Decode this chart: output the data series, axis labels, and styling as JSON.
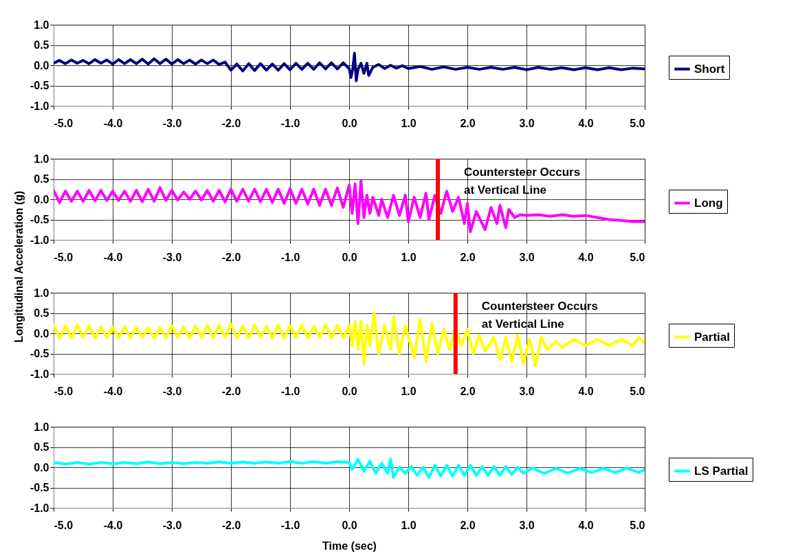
{
  "chart_data": [
    {
      "type": "line",
      "x": [
        -5.0,
        -4.9,
        -4.8,
        -4.7,
        -4.6,
        -4.5,
        -4.4,
        -4.3,
        -4.2,
        -4.1,
        -4.0,
        -3.9,
        -3.8,
        -3.7,
        -3.6,
        -3.5,
        -3.4,
        -3.3,
        -3.2,
        -3.1,
        -3.0,
        -2.9,
        -2.8,
        -2.7,
        -2.6,
        -2.5,
        -2.4,
        -2.3,
        -2.2,
        -2.1,
        -2.0,
        -1.9,
        -1.8,
        -1.7,
        -1.6,
        -1.5,
        -1.4,
        -1.3,
        -1.2,
        -1.1,
        -1.0,
        -0.9,
        -0.8,
        -0.7,
        -0.6,
        -0.5,
        -0.4,
        -0.3,
        -0.2,
        -0.1,
        0.0,
        0.03,
        0.06,
        0.09,
        0.12,
        0.15,
        0.2,
        0.25,
        0.3,
        0.33,
        0.4,
        0.5,
        0.6,
        0.7,
        0.8,
        0.9,
        1.0,
        1.2,
        1.4,
        1.6,
        1.8,
        2.0,
        2.2,
        2.4,
        2.6,
        2.8,
        3.0,
        3.2,
        3.4,
        3.6,
        3.8,
        4.0,
        4.2,
        4.4,
        4.6,
        4.8,
        5.0
      ],
      "series": [
        {
          "name": "Short",
          "color": "#000080",
          "values": [
            0.05,
            0.12,
            0.04,
            0.13,
            0.05,
            0.12,
            0.04,
            0.14,
            0.05,
            0.13,
            0.03,
            0.14,
            0.04,
            0.14,
            0.04,
            0.15,
            0.03,
            0.16,
            0.04,
            0.15,
            0.03,
            0.14,
            0.04,
            0.13,
            0.03,
            0.13,
            0.04,
            0.13,
            0.02,
            0.08,
            -0.12,
            0.03,
            -0.14,
            0.04,
            -0.13,
            0.04,
            -0.12,
            0.03,
            -0.12,
            0.04,
            -0.11,
            0.05,
            -0.1,
            0.05,
            -0.1,
            0.06,
            -0.09,
            0.06,
            -0.09,
            0.06,
            -0.08,
            -0.3,
            -0.1,
            0.3,
            -0.38,
            -0.1,
            0.05,
            -0.2,
            0.05,
            -0.25,
            -0.05,
            0.02,
            -0.08,
            0.0,
            -0.07,
            -0.01,
            -0.08,
            -0.03,
            -0.1,
            -0.04,
            -0.1,
            -0.05,
            -0.1,
            -0.05,
            -0.1,
            -0.05,
            -0.11,
            -0.05,
            -0.1,
            -0.06,
            -0.11,
            -0.06,
            -0.11,
            -0.06,
            -0.11,
            -0.07,
            -0.09
          ]
        }
      ],
      "xlim": [
        -5,
        5
      ],
      "xticks": [
        {
          "value": -5,
          "label": "-5.0"
        },
        {
          "value": -4,
          "label": "-4.0"
        },
        {
          "value": -3,
          "label": "-3.0"
        },
        {
          "value": -2,
          "label": "-2.0"
        },
        {
          "value": -1,
          "label": "-1.0"
        },
        {
          "value": 0,
          "label": "0.0"
        },
        {
          "value": 1,
          "label": "1.0"
        },
        {
          "value": 2,
          "label": "2.0"
        },
        {
          "value": 3,
          "label": "3.0"
        },
        {
          "value": 4,
          "label": "4.0"
        },
        {
          "value": 5,
          "label": "5.0"
        }
      ],
      "ylim": [
        -1,
        1
      ],
      "yticks": [
        {
          "value": -1,
          "label": "-1.0"
        },
        {
          "value": -0.5,
          "label": "-0.5"
        },
        {
          "value": 0,
          "label": "0.0"
        },
        {
          "value": 0.5,
          "label": "0.5"
        },
        {
          "value": 1,
          "label": "1.0"
        }
      ],
      "grid": true,
      "legend": "right"
    },
    {
      "type": "line",
      "ylabel": "Longitudinal Acceleration (g)",
      "x": [
        -5.0,
        -4.9,
        -4.8,
        -4.7,
        -4.6,
        -4.5,
        -4.4,
        -4.3,
        -4.2,
        -4.1,
        -4.0,
        -3.9,
        -3.8,
        -3.7,
        -3.6,
        -3.5,
        -3.4,
        -3.3,
        -3.2,
        -3.1,
        -3.0,
        -2.9,
        -2.8,
        -2.7,
        -2.6,
        -2.5,
        -2.4,
        -2.3,
        -2.2,
        -2.1,
        -2.0,
        -1.9,
        -1.8,
        -1.7,
        -1.6,
        -1.5,
        -1.4,
        -1.3,
        -1.2,
        -1.1,
        -1.0,
        -0.9,
        -0.8,
        -0.7,
        -0.6,
        -0.5,
        -0.4,
        -0.3,
        -0.2,
        -0.1,
        0.0,
        0.05,
        0.1,
        0.15,
        0.2,
        0.25,
        0.3,
        0.35,
        0.4,
        0.5,
        0.55,
        0.65,
        0.75,
        0.85,
        0.95,
        1.0,
        1.1,
        1.2,
        1.3,
        1.35,
        1.45,
        1.55,
        1.65,
        1.75,
        1.85,
        1.95,
        2.0,
        2.05,
        2.15,
        2.25,
        2.3,
        2.4,
        2.5,
        2.55,
        2.65,
        2.7,
        2.8,
        2.9,
        3.0,
        3.2,
        3.4,
        3.6,
        3.8,
        4.0,
        4.2,
        4.4,
        4.6,
        4.8,
        5.0
      ],
      "series": [
        {
          "name": "Long",
          "color": "#ff00ff",
          "values": [
            0.22,
            -0.08,
            0.2,
            -0.05,
            0.2,
            -0.05,
            0.22,
            -0.04,
            0.22,
            -0.03,
            0.2,
            -0.03,
            0.2,
            -0.05,
            0.22,
            -0.06,
            0.25,
            -0.05,
            0.29,
            -0.03,
            0.22,
            -0.02,
            0.18,
            0.0,
            0.2,
            -0.02,
            0.22,
            -0.05,
            0.22,
            -0.06,
            0.25,
            -0.05,
            0.25,
            -0.05,
            0.25,
            -0.06,
            0.25,
            -0.08,
            0.25,
            -0.1,
            0.26,
            -0.1,
            0.25,
            -0.12,
            0.25,
            -0.15,
            0.25,
            -0.15,
            0.28,
            -0.2,
            0.35,
            -0.35,
            0.38,
            -0.6,
            0.45,
            -0.45,
            0.1,
            -0.35,
            0.05,
            -0.4,
            0.0,
            -0.45,
            0.1,
            -0.4,
            0.1,
            -0.55,
            0.05,
            -0.45,
            0.15,
            -0.5,
            0.1,
            -0.35,
            0.2,
            -0.3,
            0.05,
            -0.6,
            -0.1,
            -0.8,
            -0.3,
            -0.6,
            -0.75,
            -0.2,
            -0.6,
            -0.15,
            -0.7,
            -0.25,
            -0.45,
            -0.38,
            -0.4,
            -0.38,
            -0.42,
            -0.38,
            -0.42,
            -0.4,
            -0.45,
            -0.5,
            -0.52,
            -0.55,
            -0.55
          ]
        }
      ],
      "xlim": [
        -5,
        5
      ],
      "xticks": [
        {
          "value": -5,
          "label": "-5.0"
        },
        {
          "value": -4,
          "label": "-4.0"
        },
        {
          "value": -3,
          "label": "-3.0"
        },
        {
          "value": -2,
          "label": "-2.0"
        },
        {
          "value": -1,
          "label": "-1.0"
        },
        {
          "value": 0,
          "label": "0.0"
        },
        {
          "value": 1,
          "label": "1.0"
        },
        {
          "value": 2,
          "label": "2.0"
        },
        {
          "value": 3,
          "label": "3.0"
        },
        {
          "value": 4,
          "label": "4.0"
        },
        {
          "value": 5,
          "label": "5.0"
        }
      ],
      "ylim": [
        -1,
        1
      ],
      "yticks": [
        {
          "value": -1,
          "label": "-1.0"
        },
        {
          "value": -0.5,
          "label": "-0.5"
        },
        {
          "value": 0,
          "label": "0.0"
        },
        {
          "value": 0.5,
          "label": "0.5"
        },
        {
          "value": 1,
          "label": "1.0"
        }
      ],
      "ref_lines": [
        {
          "axis": "x",
          "value": 1.5,
          "label": "Countersteer Occurs\nat Vertical Line",
          "color": "#ff0000"
        }
      ],
      "grid": true,
      "legend": "right"
    },
    {
      "type": "line",
      "x": [
        -5.0,
        -4.9,
        -4.8,
        -4.7,
        -4.6,
        -4.5,
        -4.4,
        -4.3,
        -4.2,
        -4.1,
        -4.0,
        -3.9,
        -3.8,
        -3.7,
        -3.6,
        -3.5,
        -3.4,
        -3.3,
        -3.2,
        -3.1,
        -3.0,
        -2.9,
        -2.8,
        -2.7,
        -2.6,
        -2.5,
        -2.4,
        -2.3,
        -2.2,
        -2.1,
        -2.0,
        -1.9,
        -1.8,
        -1.7,
        -1.6,
        -1.5,
        -1.4,
        -1.3,
        -1.2,
        -1.1,
        -1.0,
        -0.9,
        -0.8,
        -0.7,
        -0.6,
        -0.5,
        -0.4,
        -0.3,
        -0.2,
        -0.1,
        0.0,
        0.05,
        0.1,
        0.15,
        0.2,
        0.25,
        0.3,
        0.35,
        0.42,
        0.5,
        0.6,
        0.7,
        0.75,
        0.85,
        0.95,
        1.1,
        1.2,
        1.3,
        1.4,
        1.5,
        1.6,
        1.7,
        1.8,
        1.9,
        2.0,
        2.1,
        2.2,
        2.3,
        2.45,
        2.55,
        2.65,
        2.75,
        2.85,
        2.95,
        3.05,
        3.15,
        3.25,
        3.35,
        3.5,
        3.6,
        3.8,
        4.0,
        4.2,
        4.4,
        4.6,
        4.8,
        4.9,
        5.0
      ],
      "series": [
        {
          "name": "Partial",
          "color": "#ffff00",
          "values": [
            0.2,
            -0.12,
            0.18,
            -0.12,
            0.2,
            -0.1,
            0.18,
            -0.12,
            0.16,
            -0.1,
            0.15,
            -0.1,
            0.16,
            -0.12,
            0.15,
            -0.1,
            0.14,
            -0.12,
            0.15,
            -0.1,
            0.18,
            -0.1,
            0.16,
            -0.12,
            0.18,
            -0.1,
            0.2,
            -0.12,
            0.2,
            -0.1,
            0.22,
            -0.12,
            0.18,
            -0.12,
            0.2,
            -0.1,
            0.18,
            -0.12,
            0.2,
            -0.12,
            0.18,
            -0.1,
            0.2,
            -0.12,
            0.18,
            -0.1,
            0.2,
            -0.12,
            0.2,
            -0.12,
            0.2,
            -0.3,
            0.3,
            -0.4,
            0.3,
            -0.75,
            0.2,
            -0.3,
            0.5,
            -0.5,
            0.2,
            -0.4,
            0.4,
            -0.5,
            0.2,
            -0.6,
            0.35,
            -0.7,
            0.25,
            -0.5,
            0.1,
            -0.4,
            0.15,
            -0.3,
            0.1,
            -0.5,
            -0.05,
            -0.45,
            -0.1,
            -0.65,
            -0.1,
            -0.7,
            -0.05,
            -0.75,
            -0.15,
            -0.8,
            -0.1,
            -0.4,
            -0.2,
            -0.35,
            -0.15,
            -0.3,
            -0.15,
            -0.3,
            -0.15,
            -0.3,
            -0.1,
            -0.25
          ]
        }
      ],
      "xlim": [
        -5,
        5
      ],
      "xticks": [
        {
          "value": -5,
          "label": "-5.0"
        },
        {
          "value": -4,
          "label": "-4.0"
        },
        {
          "value": -3,
          "label": "-3.0"
        },
        {
          "value": -2,
          "label": "-2.0"
        },
        {
          "value": -1,
          "label": "-1.0"
        },
        {
          "value": 0,
          "label": "0.0"
        },
        {
          "value": 1,
          "label": "1.0"
        },
        {
          "value": 2,
          "label": "2.0"
        },
        {
          "value": 3,
          "label": "3.0"
        },
        {
          "value": 4,
          "label": "4.0"
        },
        {
          "value": 5,
          "label": "5.0"
        }
      ],
      "ylim": [
        -1,
        1
      ],
      "yticks": [
        {
          "value": -1,
          "label": "-1.0"
        },
        {
          "value": -0.5,
          "label": "-0.5"
        },
        {
          "value": 0,
          "label": "0.0"
        },
        {
          "value": 0.5,
          "label": "0.5"
        },
        {
          "value": 1,
          "label": "1.0"
        }
      ],
      "ref_lines": [
        {
          "axis": "x",
          "value": 1.8,
          "label": "Countersteer Occurs\nat Vertical Line",
          "color": "#ff0000"
        }
      ],
      "grid": true,
      "legend": "right"
    },
    {
      "type": "line",
      "xlabel": "Time (sec)",
      "x": [
        -5.0,
        -4.8,
        -4.6,
        -4.4,
        -4.2,
        -4.0,
        -3.8,
        -3.6,
        -3.4,
        -3.2,
        -3.0,
        -2.8,
        -2.6,
        -2.4,
        -2.2,
        -2.0,
        -1.8,
        -1.6,
        -1.4,
        -1.2,
        -1.0,
        -0.8,
        -0.6,
        -0.4,
        -0.2,
        0.0,
        0.05,
        0.15,
        0.25,
        0.35,
        0.45,
        0.55,
        0.65,
        0.7,
        0.75,
        0.85,
        0.95,
        1.05,
        1.15,
        1.25,
        1.35,
        1.45,
        1.55,
        1.65,
        1.75,
        1.85,
        1.95,
        2.05,
        2.15,
        2.25,
        2.35,
        2.45,
        2.55,
        2.65,
        2.75,
        2.85,
        2.95,
        3.1,
        3.3,
        3.5,
        3.7,
        3.9,
        4.1,
        4.3,
        4.5,
        4.7,
        4.9,
        5.0
      ],
      "series": [
        {
          "name": "LS Partial",
          "color": "#00ffff",
          "values": [
            0.12,
            0.08,
            0.12,
            0.08,
            0.12,
            0.09,
            0.12,
            0.09,
            0.13,
            0.09,
            0.12,
            0.09,
            0.12,
            0.1,
            0.13,
            0.1,
            0.13,
            0.1,
            0.13,
            0.1,
            0.14,
            0.1,
            0.14,
            0.1,
            0.14,
            0.12,
            -0.05,
            0.2,
            -0.1,
            0.15,
            -0.15,
            0.1,
            -0.15,
            0.2,
            -0.25,
            0.0,
            -0.15,
            0.02,
            -0.2,
            0.0,
            -0.25,
            0.05,
            -0.22,
            0.05,
            -0.22,
            0.05,
            -0.2,
            0.05,
            -0.2,
            0.02,
            -0.2,
            0.02,
            -0.2,
            0.02,
            -0.18,
            0.0,
            -0.15,
            -0.02,
            -0.15,
            -0.03,
            -0.14,
            -0.03,
            -0.13,
            -0.03,
            -0.13,
            -0.02,
            -0.13,
            -0.05
          ]
        }
      ],
      "xlim": [
        -5,
        5
      ],
      "xticks": [
        {
          "value": -5,
          "label": "-5.0"
        },
        {
          "value": -4,
          "label": "-4.0"
        },
        {
          "value": -3,
          "label": "-3.0"
        },
        {
          "value": -2,
          "label": "-2.0"
        },
        {
          "value": -1,
          "label": "-1.0"
        },
        {
          "value": 0,
          "label": "0.0"
        },
        {
          "value": 1,
          "label": "1.0"
        },
        {
          "value": 2,
          "label": "2.0"
        },
        {
          "value": 3,
          "label": "3.0"
        },
        {
          "value": 4,
          "label": "4.0"
        },
        {
          "value": 5,
          "label": "5.0"
        }
      ],
      "ylim": [
        -1,
        1
      ],
      "yticks": [
        {
          "value": -1,
          "label": "-1.0"
        },
        {
          "value": -0.5,
          "label": "-0.5"
        },
        {
          "value": 0,
          "label": "0.0"
        },
        {
          "value": 0.5,
          "label": "0.5"
        },
        {
          "value": 1,
          "label": "1.0"
        }
      ],
      "grid": true,
      "legend": "right"
    }
  ]
}
